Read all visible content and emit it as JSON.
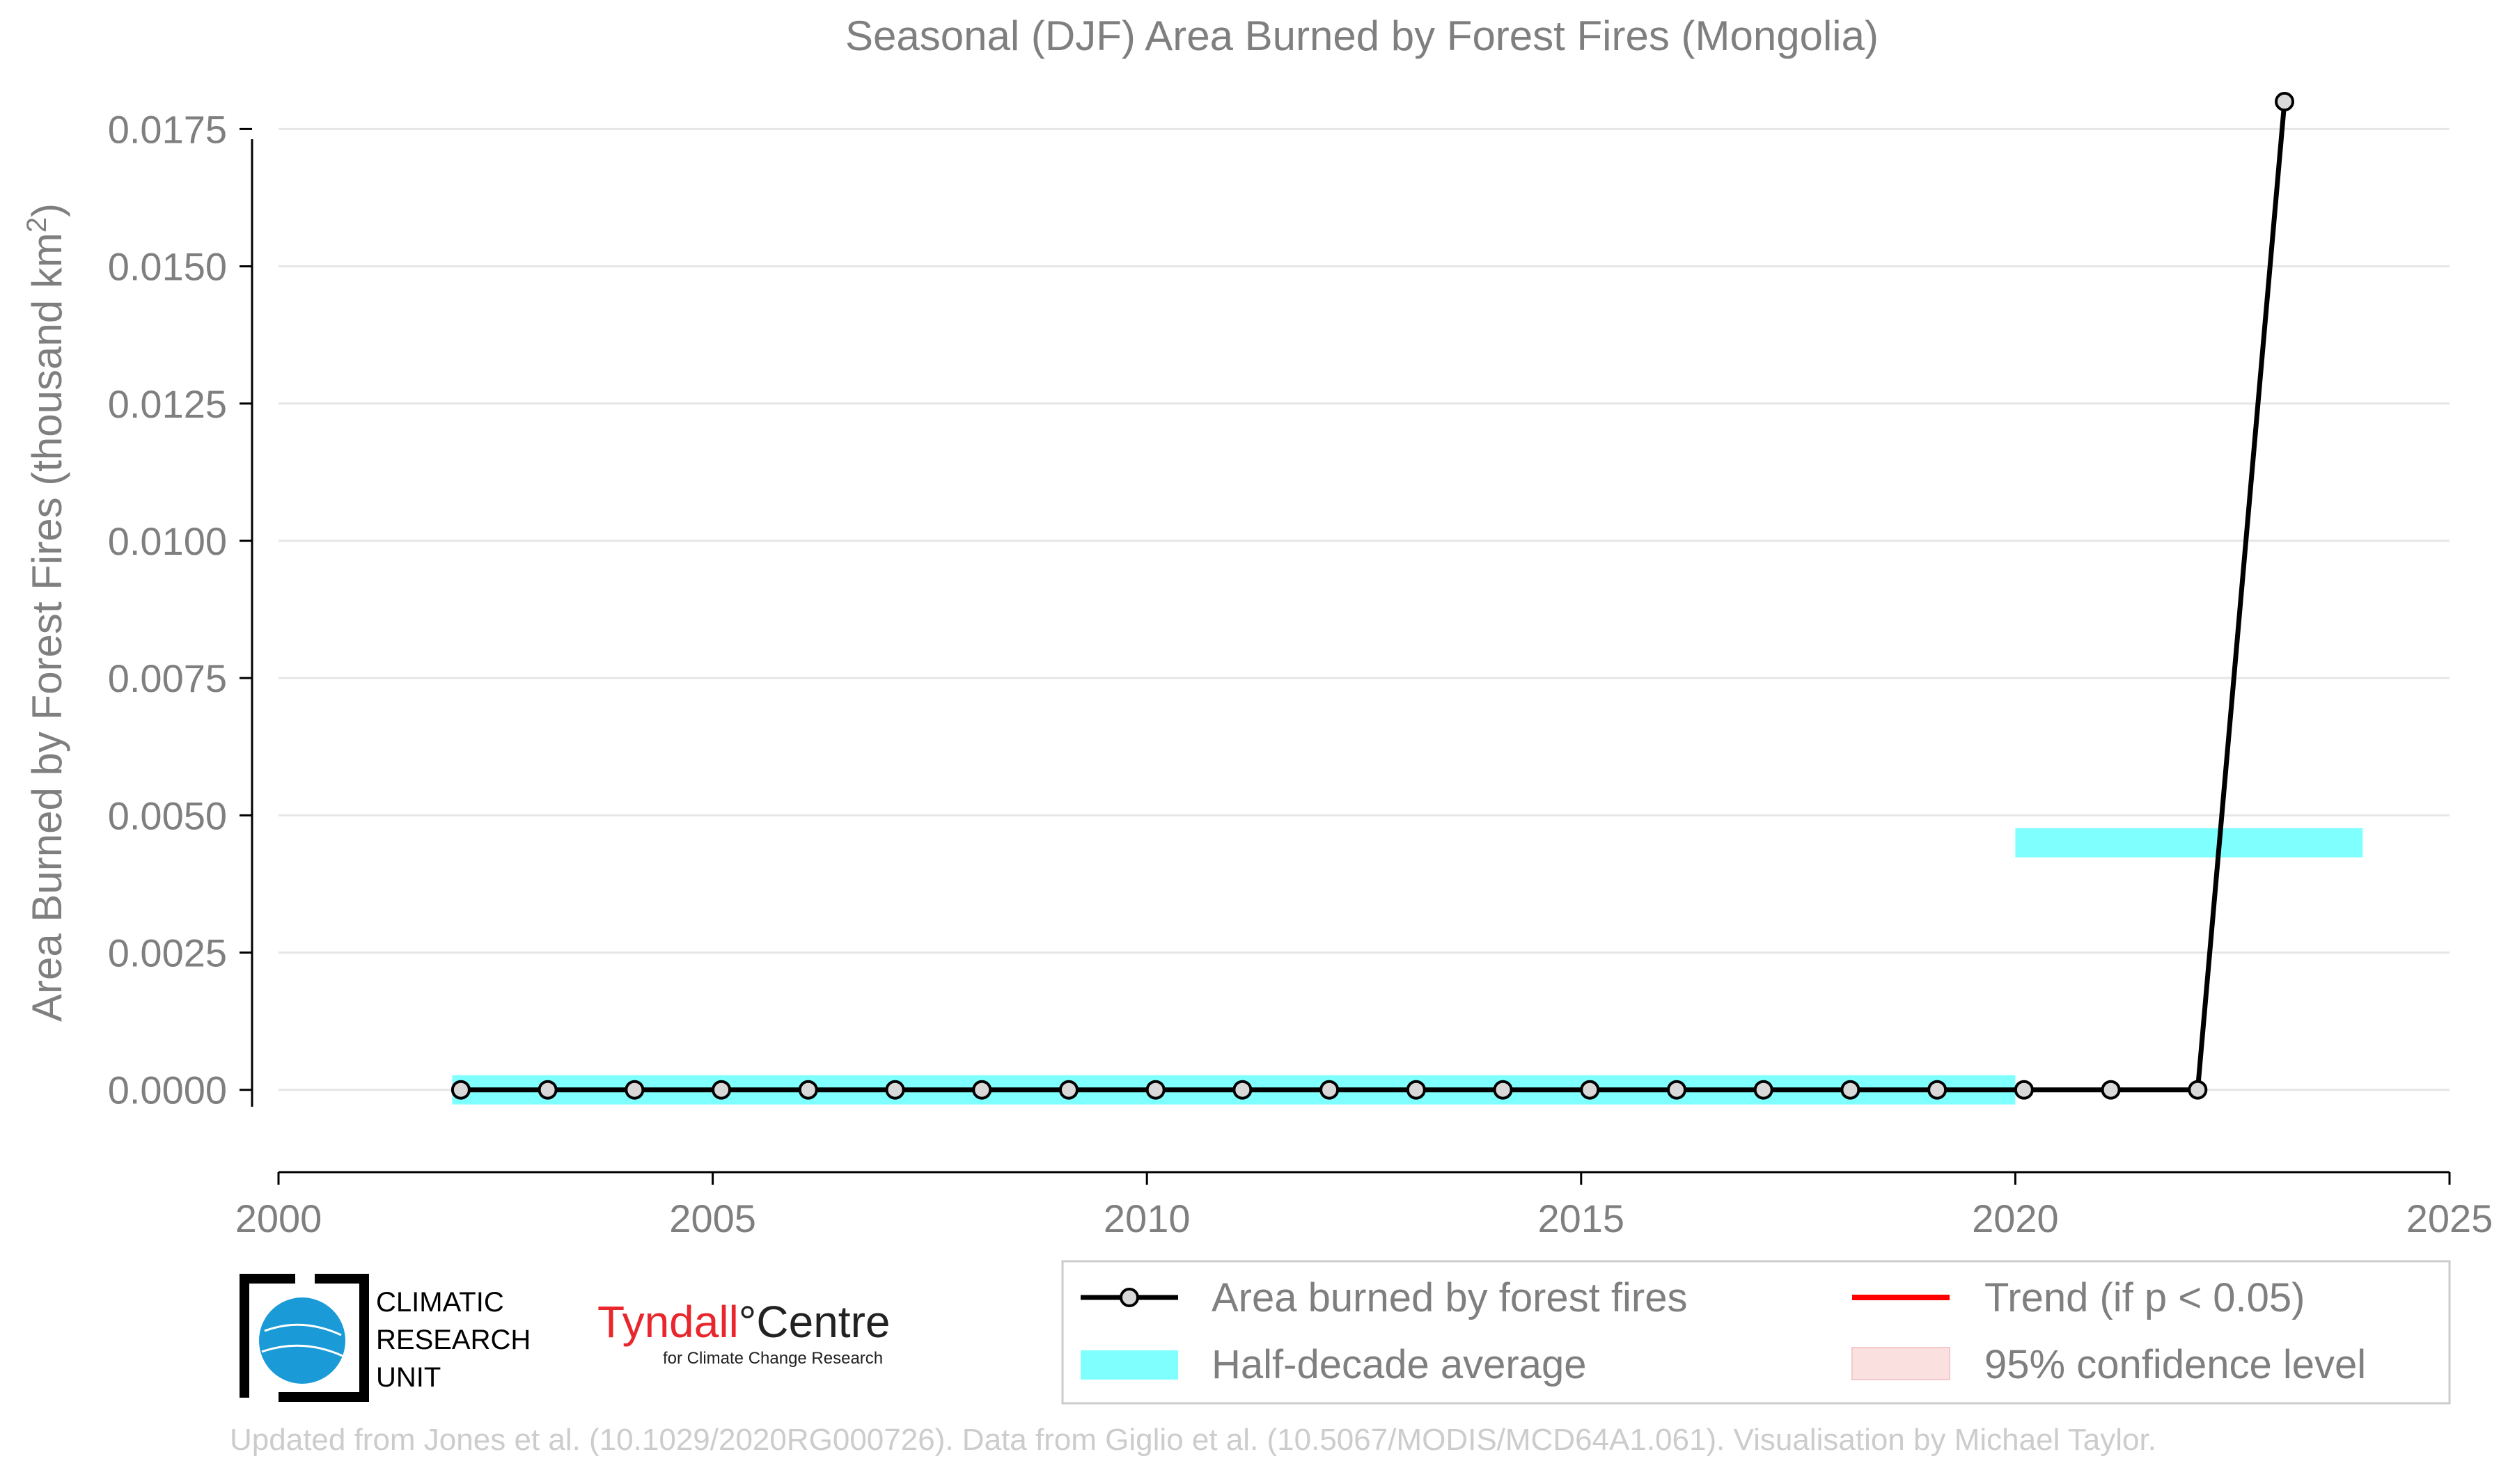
{
  "chart_data": {
    "type": "line",
    "title": "Seasonal (DJF) Area Burned by Forest Fires (Mongolia)",
    "xlabel": "",
    "ylabel": "Area Burned by Forest Fires (thousand km²)",
    "xlim": [
      2000,
      2025
    ],
    "ylim": [
      -0.0015,
      0.018
    ],
    "x_ticks": [
      2000,
      2005,
      2010,
      2015,
      2020,
      2025
    ],
    "y_ticks": [
      0.0,
      0.0025,
      0.005,
      0.0075,
      0.01,
      0.0125,
      0.015,
      0.0175
    ],
    "y_tick_labels": [
      "0.0000",
      "0.0025",
      "0.0050",
      "0.0075",
      "0.0100",
      "0.0125",
      "0.0150",
      "0.0175"
    ],
    "grid": "horizontal",
    "legend_position": "bottom-right",
    "series": [
      {
        "name": "Area burned by forest fires",
        "style": "line-markers",
        "color": "#000000",
        "marker_fill": "#d9d9d9",
        "x": [
          2002.1,
          2003.1,
          2004.1,
          2005.1,
          2006.1,
          2007.1,
          2008.1,
          2009.1,
          2010.1,
          2011.1,
          2012.1,
          2013.1,
          2014.1,
          2015.1,
          2016.1,
          2017.1,
          2018.1,
          2019.1,
          2020.1,
          2021.1,
          2022.1,
          2023.1
        ],
        "values": [
          0.0,
          0.0,
          0.0,
          0.0,
          0.0,
          0.0,
          0.0,
          0.0,
          0.0,
          0.0,
          0.0,
          0.0,
          0.0,
          0.0,
          0.0,
          0.0,
          0.0,
          0.0,
          0.0,
          0.0,
          0.0,
          0.018
        ]
      },
      {
        "name": "Half-decade average",
        "style": "band",
        "color": "#80ffff",
        "segments": [
          {
            "x_start": 2002.0,
            "x_end": 2020.0,
            "value": 0.0
          },
          {
            "x_start": 2020.0,
            "x_end": 2024.0,
            "value": 0.0045
          }
        ]
      },
      {
        "name": "Trend (if p < 0.05)",
        "style": "legend-only",
        "color": "#ff0000"
      },
      {
        "name": "95% confidence level",
        "style": "legend-only",
        "color": "#fbe0e0"
      }
    ]
  },
  "credits": {
    "text": "Updated from Jones et al. (10.1029/2020RG000726). Data from Giglio et al. (10.5067/MODIS/MCD64A1.061). Visualisation by Michael Taylor."
  },
  "logos": {
    "cru_lines": [
      "CLIMATIC",
      "RESEARCH",
      "UNIT"
    ],
    "tyndall_name": "Tyndall",
    "tyndall_degree": "°",
    "tyndall_centre": "Centre",
    "tyndall_sub": "for Climate Change Research",
    "cru_globe_color": "#1a9ad6"
  }
}
